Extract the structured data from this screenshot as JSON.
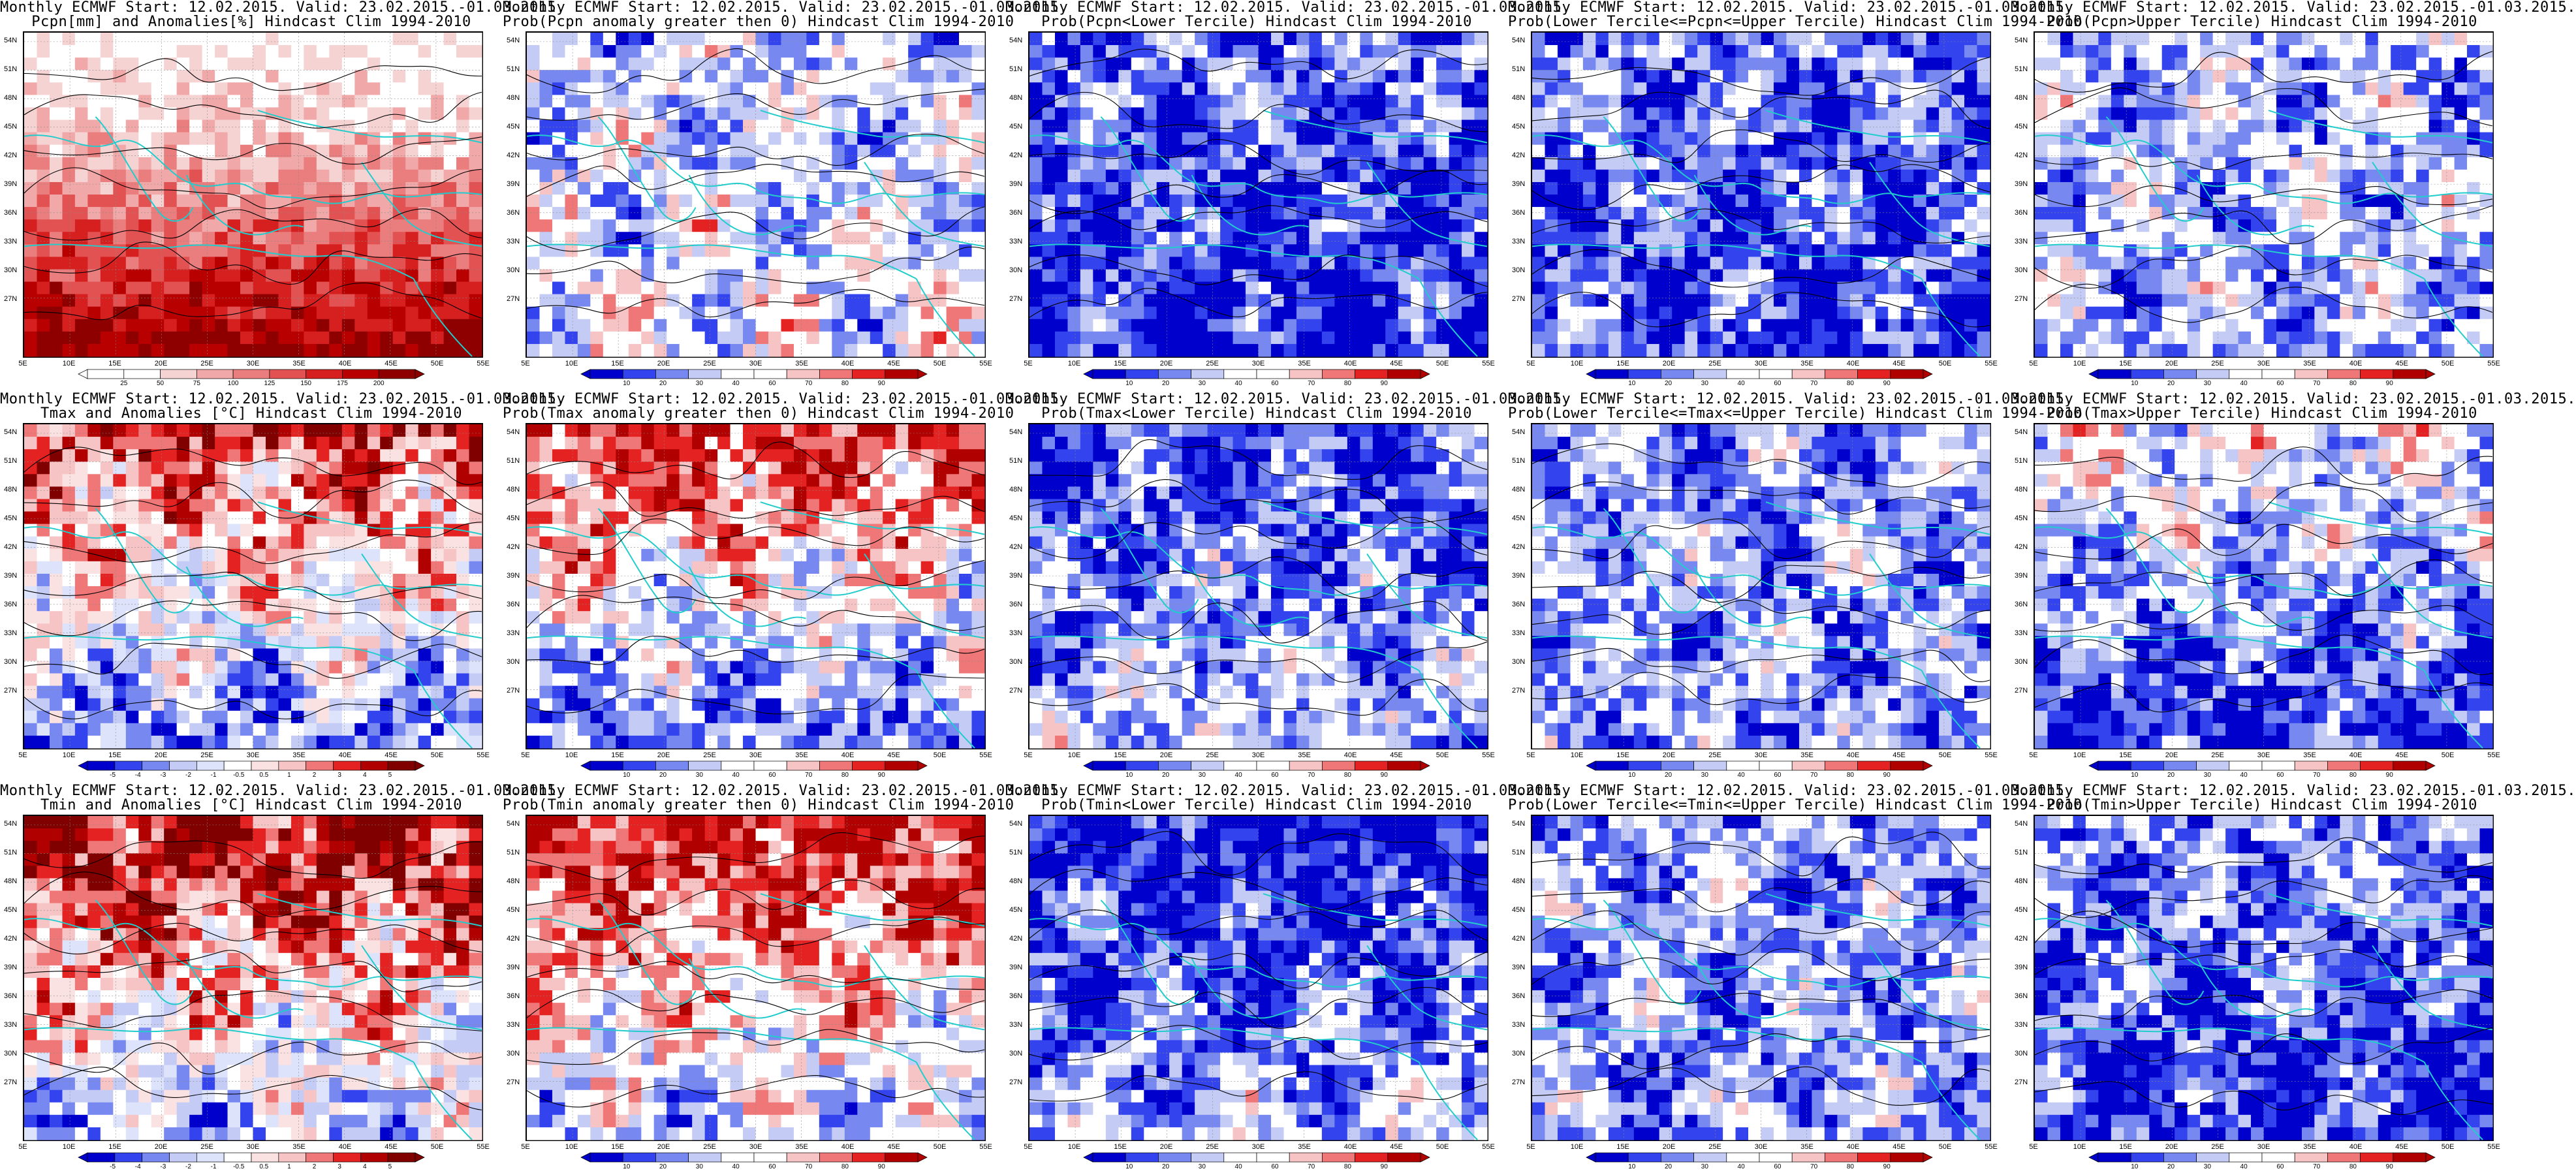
{
  "panels": [
    {
      "line1": "Monthly ECMWF Start: 12.02.2015. Valid: 23.02.2015.-01.03.2015.",
      "line2": "Pcpn[mm] and Anomalies[%] Hindcast Clim 1994-2010",
      "scale": "pcpn-anom",
      "cbar": [
        "25",
        "50",
        "75",
        "100",
        "125",
        "150",
        "175",
        "200"
      ]
    },
    {
      "line1": "Monthly ECMWF Start: 12.02.2015. Valid: 23.02.2015.-01.03.2015.",
      "line2": "Prob(Pcpn anomaly greater then 0) Hindcast Clim 1994-2010",
      "scale": "prob",
      "cbar": [
        "10",
        "20",
        "30",
        "40",
        "60",
        "70",
        "80",
        "90"
      ]
    },
    {
      "line1": "Monthly ECMWF Start: 12.02.2015. Valid: 23.02.2015.-01.03.2015.",
      "line2": "Prob(Pcpn<Lower Tercile) Hindcast Clim 1994-2010",
      "scale": "prob",
      "cbar": [
        "10",
        "20",
        "30",
        "40",
        "60",
        "70",
        "80",
        "90"
      ]
    },
    {
      "line1": "Monthly ECMWF Start: 12.02.2015. Valid: 23.02.2015.-01.03.2015.",
      "line2": "Prob(Lower Tercile<=Pcpn<=Upper Tercile) Hindcast Clim 1994-2010",
      "scale": "prob",
      "cbar": [
        "10",
        "20",
        "30",
        "40",
        "60",
        "70",
        "80",
        "90"
      ]
    },
    {
      "line1": "Monthly ECMWF Start: 12.02.2015. Valid: 23.02.2015.-01.03.2015.",
      "line2": "Prob(Pcpn>Upper Tercile) Hindcast Clim 1994-2010",
      "scale": "prob",
      "cbar": [
        "10",
        "20",
        "30",
        "40",
        "60",
        "70",
        "80",
        "90"
      ]
    },
    {
      "line1": "Monthly ECMWF Start: 12.02.2015. Valid: 23.02.2015.-01.03.2015.",
      "line2": "Tmax and Anomalies [°C] Hindcast Clim 1994-2010",
      "scale": "temp-anom",
      "cbar": [
        "-5",
        "-4",
        "-3",
        "-2",
        "-1",
        "-0.5",
        "0.5",
        "1",
        "2",
        "3",
        "4",
        "5"
      ]
    },
    {
      "line1": "Monthly ECMWF Start: 12.02.2015. Valid: 23.02.2015.-01.03.2015.",
      "line2": "Prob(Tmax anomaly greater then 0) Hindcast Clim 1994-2010",
      "scale": "prob",
      "cbar": [
        "10",
        "20",
        "30",
        "40",
        "60",
        "70",
        "80",
        "90"
      ]
    },
    {
      "line1": "Monthly ECMWF Start: 12.02.2015. Valid: 23.02.2015.-01.03.2015.",
      "line2": "Prob(Tmax<Lower Tercile) Hindcast Clim 1994-2010",
      "scale": "prob",
      "cbar": [
        "10",
        "20",
        "30",
        "40",
        "60",
        "70",
        "80",
        "90"
      ]
    },
    {
      "line1": "Monthly ECMWF Start: 12.02.2015. Valid: 23.02.2015.-01.03.2015.",
      "line2": "Prob(Lower Tercile<=Tmax<=Upper Tercile) Hindcast Clim 1994-2010",
      "scale": "prob",
      "cbar": [
        "10",
        "20",
        "30",
        "40",
        "60",
        "70",
        "80",
        "90"
      ]
    },
    {
      "line1": "Monthly ECMWF Start: 12.02.2015. Valid: 23.02.2015.-01.03.2015.",
      "line2": "Prob(Tmax>Upper Tercile) Hindcast Clim 1994-2010",
      "scale": "prob",
      "cbar": [
        "10",
        "20",
        "30",
        "40",
        "60",
        "70",
        "80",
        "90"
      ]
    },
    {
      "line1": "Monthly ECMWF Start: 12.02.2015. Valid: 23.02.2015.-01.03.2015.",
      "line2": "Tmin and Anomalies [°C] Hindcast Clim 1994-2010",
      "scale": "temp-anom",
      "cbar": [
        "-5",
        "-4",
        "-3",
        "-2",
        "-1",
        "-0.5",
        "0.5",
        "1",
        "2",
        "3",
        "4",
        "5"
      ]
    },
    {
      "line1": "Monthly ECMWF Start: 12.02.2015. Valid: 23.02.2015.-01.03.2015.",
      "line2": "Prob(Tmin anomaly greater then 0) Hindcast Clim 1994-2010",
      "scale": "prob",
      "cbar": [
        "10",
        "20",
        "30",
        "40",
        "60",
        "70",
        "80",
        "90"
      ]
    },
    {
      "line1": "Monthly ECMWF Start: 12.02.2015. Valid: 23.02.2015.-01.03.2015.",
      "line2": "Prob(Tmin<Lower Tercile) Hindcast Clim 1994-2010",
      "scale": "prob",
      "cbar": [
        "10",
        "20",
        "30",
        "40",
        "60",
        "70",
        "80",
        "90"
      ]
    },
    {
      "line1": "Monthly ECMWF Start: 12.02.2015. Valid: 23.02.2015.-01.03.2015.",
      "line2": "Prob(Lower Tercile<=Tmin<=Upper Tercile) Hindcast Clim 1994-2010",
      "scale": "prob",
      "cbar": [
        "10",
        "20",
        "30",
        "40",
        "60",
        "70",
        "80",
        "90"
      ]
    },
    {
      "line1": "Monthly ECMWF Start: 12.02.2015. Valid: 23.02.2015.-01.03.2015.",
      "line2": "Prob(Tmin>Upper Tercile) Hindcast Clim 1994-2010",
      "scale": "prob",
      "cbar": [
        "10",
        "20",
        "30",
        "40",
        "60",
        "70",
        "80",
        "90"
      ]
    }
  ],
  "lat_labels": [
    "54N",
    "51N",
    "48N",
    "45N",
    "42N",
    "39N",
    "36N",
    "33N",
    "30N",
    "27N"
  ],
  "lon_labels": [
    "5E",
    "10E",
    "15E",
    "20E",
    "25E",
    "30E",
    "35E",
    "40E",
    "45E",
    "50E",
    "55E"
  ],
  "colors": {
    "deep_blue": "#0000cc",
    "blue": "#3344ee",
    "mid_blue": "#7788f0",
    "light_blue": "#c4ccf6",
    "white": "#ffffff",
    "light_red": "#f6c4c4",
    "mid_red": "#ef7777",
    "red": "#e52222",
    "deep_red": "#b00000",
    "coast": "#22cccc",
    "contour": "#000000"
  }
}
